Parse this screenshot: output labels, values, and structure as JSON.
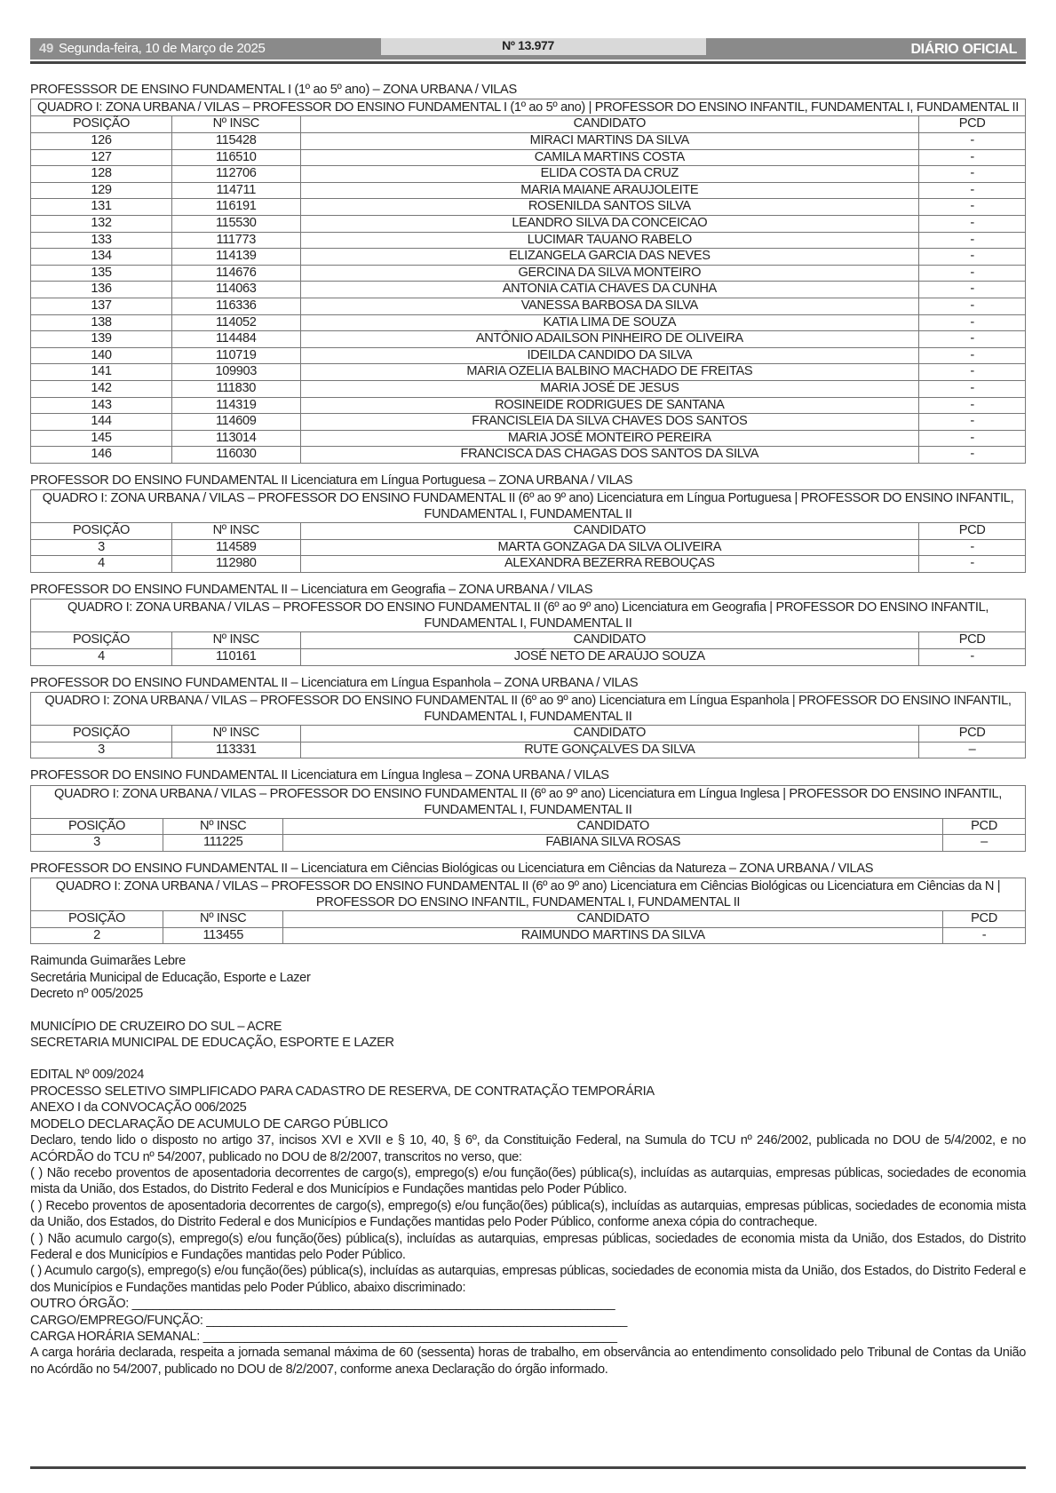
{
  "header": {
    "page_number": "49",
    "date": "Segunda-feira, 10 de Março de 2025",
    "edition": "Nº 13.977",
    "publication": "DIÁRIO OFICIAL"
  },
  "sections": [
    {
      "title": "PROFESSSOR DE ENSINO FUNDAMENTAL I (1º ao 5º ano) – ZONA URBANA / VILAS",
      "quadro": "QUADRO I: ZONA URBANA / VILAS – PROFESSOR DO ENSINO FUNDAMENTAL I (1º ao 5º ano) | PROFESSOR DO ENSINO INFANTIL, FUNDAMENTAL I, FUNDAMENTAL II",
      "columns": [
        "POSIÇÃO",
        "Nº INSC",
        "CANDIDATO",
        "PCD"
      ],
      "rows": [
        [
          "126",
          "115428",
          "MIRACI MARTINS DA SILVA",
          "-"
        ],
        [
          "127",
          "116510",
          "CAMILA MARTINS COSTA",
          "-"
        ],
        [
          "128",
          "112706",
          "ELIDA COSTA DA CRUZ",
          "-"
        ],
        [
          "129",
          "114711",
          "MARIA MAIANE ARAUJOLEITE",
          "-"
        ],
        [
          "131",
          "116191",
          "ROSENILDA SANTOS SILVA",
          "-"
        ],
        [
          "132",
          "115530",
          "LEANDRO SILVA DA CONCEICAO",
          "-"
        ],
        [
          "133",
          "111773",
          "LUCIMAR TAUANO RABELO",
          "-"
        ],
        [
          "134",
          "114139",
          "ELIZANGELA GARCIA DAS NEVES",
          "-"
        ],
        [
          "135",
          "114676",
          "GERCINA DA SILVA MONTEIRO",
          "-"
        ],
        [
          "136",
          "114063",
          "ANTONIA CATIA CHAVES DA CUNHA",
          "-"
        ],
        [
          "137",
          "116336",
          "VANESSA BARBOSA DA SILVA",
          "-"
        ],
        [
          "138",
          "114052",
          "KATIA LIMA DE SOUZA",
          "-"
        ],
        [
          "139",
          "114484",
          "ANTÔNIO ADAILSON PINHEIRO DE OLIVEIRA",
          "-"
        ],
        [
          "140",
          "110719",
          "IDEILDA CANDIDO DA SILVA",
          "-"
        ],
        [
          "141",
          "109903",
          "MARIA OZELIA BALBINO MACHADO DE FREITAS",
          "-"
        ],
        [
          "142",
          "111830",
          "MARIA JOSÉ DE JESUS",
          "-"
        ],
        [
          "143",
          "114319",
          "ROSINEIDE RODRIGUES DE SANTANA",
          "-"
        ],
        [
          "144",
          "114609",
          "FRANCISLEIA DA SILVA CHAVES DOS SANTOS",
          "-"
        ],
        [
          "145",
          "113014",
          "MARIA JOSÉ MONTEIRO PEREIRA",
          "-"
        ],
        [
          "146",
          "116030",
          "FRANCISCA DAS CHAGAS DOS SANTOS DA SILVA",
          "-"
        ]
      ]
    },
    {
      "title": "PROFESSOR DO ENSINO FUNDAMENTAL II Licenciatura em Língua Portuguesa – ZONA URBANA / VILAS",
      "quadro": "QUADRO I: ZONA URBANA / VILAS – PROFESSOR DO ENSINO FUNDAMENTAL II (6º ao 9º ano) Licenciatura em Língua Portuguesa | PROFESSOR DO ENSINO INFANTIL, FUNDAMENTAL I, FUNDAMENTAL II",
      "columns": [
        "POSIÇÃO",
        "Nº INSC",
        "CANDIDATO",
        "PCD"
      ],
      "rows": [
        [
          "3",
          "114589",
          "MARTA GONZAGA DA SILVA OLIVEIRA",
          "-"
        ],
        [
          "4",
          "112980",
          "ALEXANDRA BEZERRA REBOUÇAS",
          "-"
        ]
      ]
    },
    {
      "title": "PROFESSOR DO ENSINO FUNDAMENTAL II – Licenciatura em Geografia – ZONA URBANA / VILAS",
      "quadro": "QUADRO I: ZONA URBANA / VILAS – PROFESSOR DO ENSINO FUNDAMENTAL II (6º ao 9º ano) Licenciatura em Geografia | PROFESSOR DO ENSINO INFANTIL, FUNDAMENTAL I, FUNDAMENTAL II",
      "columns": [
        "POSIÇÃO",
        "Nº INSC",
        "CANDIDATO",
        "PCD"
      ],
      "rows": [
        [
          "4",
          "110161",
          "JOSÉ NETO DE ARAÚJO SOUZA",
          "-"
        ]
      ]
    },
    {
      "title": "PROFESSOR DO ENSINO FUNDAMENTAL II – Licenciatura em Língua Espanhola – ZONA URBANA / VILAS",
      "quadro": "QUADRO I: ZONA URBANA / VILAS – PROFESSOR DO ENSINO FUNDAMENTAL II (6º ao 9º ano) Licenciatura em Língua Espanhola | PROFESSOR DO ENSINO INFANTIL, FUNDAMENTAL I, FUNDAMENTAL II",
      "columns": [
        "POSIÇÃO",
        "Nº INSC",
        "CANDIDATO",
        "PCD"
      ],
      "rows": [
        [
          "3",
          "113331",
          "RUTE GONÇALVES DA SILVA",
          "–"
        ]
      ]
    },
    {
      "title": "PROFESSOR DO ENSINO FUNDAMENTAL II Licenciatura em Língua Inglesa – ZONA URBANA / VILAS",
      "quadro": "QUADRO I: ZONA URBANA / VILAS – PROFESSOR DO ENSINO FUNDAMENTAL II (6º ao 9º ano) Licenciatura em Língua Inglesa | PROFESSOR DO ENSINO INFANTIL, FUNDAMENTAL I, FUNDAMENTAL II",
      "columns": [
        "POSIÇÃO",
        "Nº INSC",
        "CANDIDATO",
        "PCD"
      ],
      "rows": [
        [
          "3",
          "111225",
          "FABIANA SILVA ROSAS",
          "–"
        ]
      ]
    },
    {
      "title": "PROFESSOR DO ENSINO FUNDAMENTAL II – Licenciatura em Ciências Biológicas ou Licenciatura em Ciências da Natureza – ZONA URBANA / VILAS",
      "quadro": "QUADRO I: ZONA URBANA / VILAS – PROFESSOR DO ENSINO FUNDAMENTAL II (6º ao 9º ano) Licenciatura em Ciências Biológicas ou Licenciatura em Ciências da N | PROFESSOR DO ENSINO INFANTIL, FUNDAMENTAL I, FUNDAMENTAL II",
      "columns": [
        "POSIÇÃO",
        "Nº INSC",
        "CANDIDATO",
        "PCD"
      ],
      "rows": [
        [
          "2",
          "113455",
          "RAIMUNDO MARTINS DA SILVA",
          "-"
        ]
      ]
    }
  ],
  "signature": {
    "name": "Raimunda Guimarães Lebre",
    "role": "Secretária Municipal de Educação, Esporte e Lazer",
    "decree": "Decreto nº 005/2025"
  },
  "org": {
    "line1": "MUNICÍPIO DE CRUZEIRO DO SUL – ACRE",
    "line2": "SECRETARIA MUNICIPAL DE EDUCAÇÃO, ESPORTE E LAZER"
  },
  "edital": {
    "lines": [
      "EDITAL Nº 009/2024",
      "PROCESSO SELETIVO SIMPLIFICADO PARA CADASTRO DE RESERVA, DE CONTRATAÇÃO TEMPORÁRIA",
      "ANEXO I da CONVOCAÇÃO 006/2025",
      "MODELO DECLARAÇÃO DE ACUMULO DE CARGO PÚBLICO"
    ],
    "paragraphs": [
      "Declaro, tendo lido o disposto no artigo 37, incisos XVI e XVII e § 10, 40, § 6º, da Constituição Federal, na Sumula do TCU nº 246/2002, publicada no DOU de 5/4/2002, e no ACÓRDÃO do TCU nº 54/2007, publicado no DOU de 8/2/2007, transcritos no verso, que:",
      "( ) Não recebo proventos de aposentadoria decorrentes de cargo(s), emprego(s) e/ou função(ões) pública(s), incluídas as autarquias, empresas públicas, sociedades de economia mista da União, dos Estados, do Distrito Federal e dos Municípios e Fundações mantidas pelo Poder Público.",
      "( ) Recebo proventos de aposentadoria decorrentes de cargo(s), emprego(s) e/ou função(ões) pública(s), incluídas as autarquias, empresas públicas, sociedades de economia mista da União, dos Estados, do Distrito Federal e dos Municípios e Fundações mantidas pelo Poder Público, conforme anexa cópia do contracheque.",
      "( ) Não acumulo cargo(s), emprego(s) e/ou função(ões) pública(s), incluídas as autarquias, empresas públicas, sociedades de economia mista da União, dos Estados, do Distrito Federal e dos Municípios e Fundações mantidas pelo Poder Público.",
      "( ) Acumulo cargo(s), emprego(s) e/ou função(ões) pública(s), incluídas as autarquias, empresas públicas, sociedades de economia mista da União, dos Estados, do Distrito Federal e dos Municípios e Fundações mantidas pelo Poder Público, abaixo discriminado:"
    ],
    "fields": [
      "OUTRO ÓRGÃO: ______________________________________________________________________",
      "CARGO/EMPREGO/FUNÇÃO: _____________________________________________________________",
      "CARGA HORÁRIA SEMANAL: ____________________________________________________________"
    ],
    "closing": "A carga horária declarada, respeita a jornada semanal máxima de 60 (sessenta) horas de trabalho, em observância ao entendimento consolidado pelo Tribunal de Contas da União no Acórdão no 54/2007, publicado no DOU de 8/2/2007, conforme anexa Declaração do órgão informado."
  }
}
